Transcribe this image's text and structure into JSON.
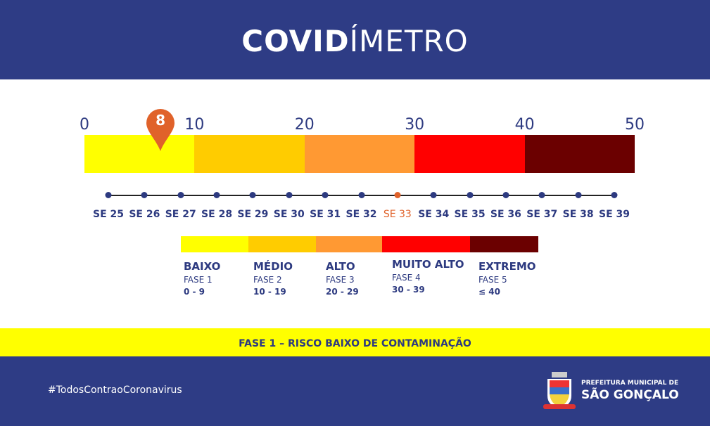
{
  "header": {
    "title_bold": "COVID",
    "title_light": "ÍMETRO"
  },
  "scale": {
    "min": 0,
    "max": 50,
    "ticks": [
      "0",
      "10",
      "20",
      "30",
      "40",
      "50"
    ],
    "segment_colors": [
      "#ffff00",
      "#ffcc00",
      "#ff9933",
      "#ff0000",
      "#6b0000"
    ]
  },
  "current": {
    "value": 8,
    "label": "8",
    "marker_color": "#e0622a"
  },
  "timeline": {
    "weeks": [
      "SE 25",
      "SE 26",
      "SE 27",
      "SE 28",
      "SE 29",
      "SE 30",
      "SE 31",
      "SE 32",
      "SE 33",
      "SE 34",
      "SE 35",
      "SE 36",
      "SE 37",
      "SE 38",
      "SE 39"
    ],
    "current_index": 8,
    "highlight_color": "#e0622a"
  },
  "legend": [
    {
      "name": "BAIXO",
      "phase": "FASE 1",
      "range": "0 - 9",
      "color": "#ffff00"
    },
    {
      "name": "MÉDIO",
      "phase": "FASE 2",
      "range": "10 - 19",
      "color": "#ffcc00"
    },
    {
      "name": "ALTO",
      "phase": "FASE 3",
      "range": "20 - 29",
      "color": "#ff9933"
    },
    {
      "name": "MUITO ALTO",
      "phase": "FASE 4",
      "range": "30 - 39",
      "color": "#ff0000"
    },
    {
      "name": "EXTREMO",
      "phase": "FASE 5",
      "range": "≤ 40",
      "color": "#6b0000"
    }
  ],
  "status_band": "FASE 1 – RISCO BAIXO DE CONTAMINAÇÃO",
  "footer": {
    "hashtag": "#TodosContraoCoronavirus",
    "logo_line1": "PREFEITURA MUNICIPAL DE",
    "logo_line2": "SÃO GONÇALO"
  }
}
